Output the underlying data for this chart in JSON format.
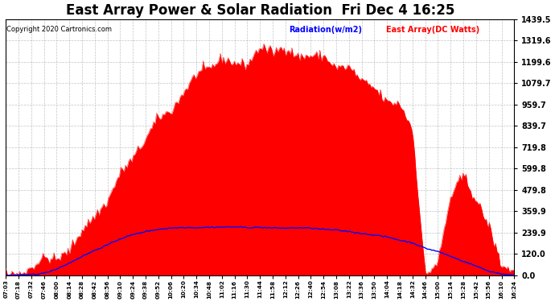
{
  "title": "East Array Power & Solar Radiation  Fri Dec 4 16:25",
  "copyright": "Copyright 2020 Cartronics.com",
  "legend_radiation": "Radiation(w/m2)",
  "legend_east": "East Array(DC Watts)",
  "y_ticks": [
    0.0,
    120.0,
    239.9,
    359.9,
    479.8,
    599.8,
    719.8,
    839.7,
    959.7,
    1079.7,
    1199.6,
    1319.6,
    1439.5
  ],
  "y_max": 1439.5,
  "y_min": 0.0,
  "background_color": "#ffffff",
  "grid_color": "#aaaaaa",
  "red_color": "#ff0000",
  "blue_color": "#0000ff",
  "title_fontsize": 12,
  "x_times": [
    "07:03",
    "07:18",
    "07:32",
    "07:46",
    "08:00",
    "08:14",
    "08:28",
    "08:42",
    "08:56",
    "09:10",
    "09:24",
    "09:38",
    "09:52",
    "10:06",
    "10:20",
    "10:34",
    "10:48",
    "11:02",
    "11:16",
    "11:30",
    "11:44",
    "11:58",
    "12:12",
    "12:26",
    "12:40",
    "12:54",
    "13:08",
    "13:22",
    "13:36",
    "13:50",
    "14:04",
    "14:18",
    "14:32",
    "14:46",
    "15:00",
    "15:14",
    "15:28",
    "15:42",
    "15:56",
    "16:10",
    "16:24"
  ],
  "east_array_values": [
    2,
    8,
    25,
    55,
    95,
    145,
    210,
    310,
    430,
    560,
    670,
    780,
    880,
    980,
    1080,
    1150,
    1190,
    1210,
    1220,
    1225,
    1240,
    1260,
    1280,
    1270,
    1250,
    1230,
    1200,
    1160,
    1110,
    1060,
    990,
    910,
    820,
    20,
    50,
    480,
    560,
    480,
    320,
    50,
    2
  ],
  "radiation_values": [
    0,
    2,
    6,
    15,
    38,
    70,
    105,
    140,
    175,
    205,
    230,
    248,
    258,
    264,
    268,
    270,
    271,
    271,
    271,
    270,
    270,
    269,
    268,
    266,
    263,
    259,
    253,
    246,
    237,
    226,
    213,
    198,
    180,
    158,
    133,
    107,
    80,
    53,
    28,
    9,
    0
  ],
  "east_noise_scale": 30,
  "rad_noise_scale": 2
}
